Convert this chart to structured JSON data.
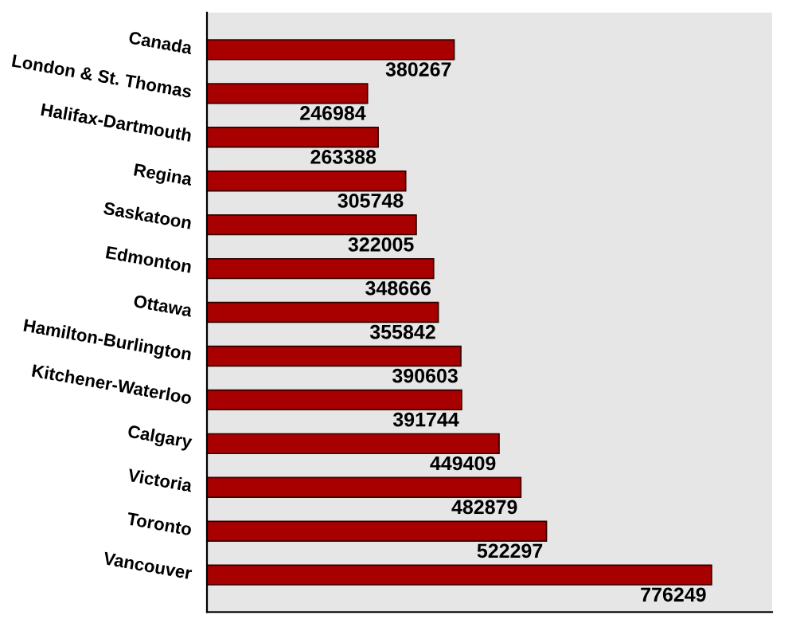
{
  "chart_data": {
    "type": "bar",
    "orientation": "horizontal",
    "categories": [
      "Canada",
      "London & St. Thomas",
      "Halifax-Dartmouth",
      "Regina",
      "Saskatoon",
      "Edmonton",
      "Ottawa",
      "Hamilton-Burlington",
      "Kitchener-Waterloo",
      "Calgary",
      "Victoria",
      "Toronto",
      "Vancouver"
    ],
    "values": [
      380267,
      246984,
      263388,
      305748,
      322005,
      348666,
      355842,
      390603,
      391744,
      449409,
      482879,
      522297,
      776249
    ],
    "color": "#a80000",
    "data_labels": true,
    "tick_labels": "y",
    "grid": false
  }
}
